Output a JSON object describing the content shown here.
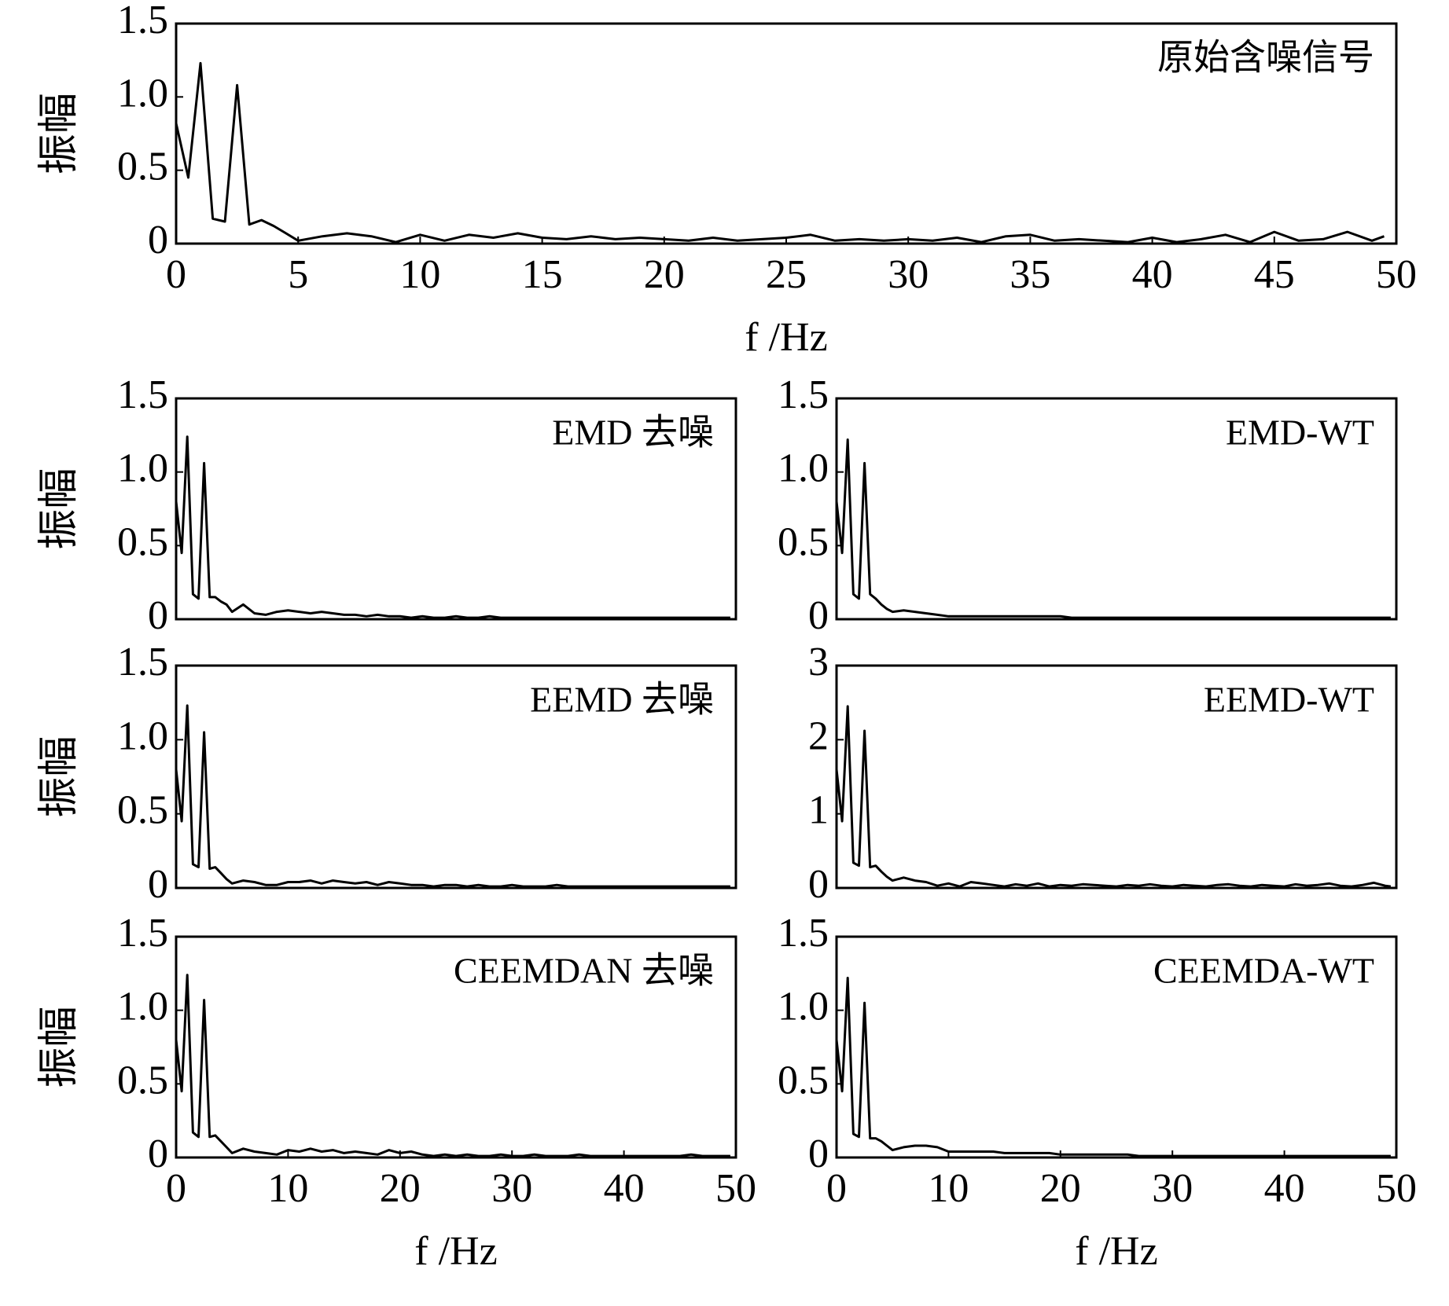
{
  "chart_data": [
    {
      "type": "line",
      "annotation": "原始含噪信号",
      "ylabel": "振幅",
      "xlabel": "f /Hz",
      "color": "#000000",
      "x": [
        0,
        0.5,
        1,
        1.5,
        2,
        2.5,
        3,
        3.5,
        4,
        4.5,
        5,
        6,
        7,
        8,
        9,
        10,
        11,
        12,
        13,
        14,
        15,
        16,
        17,
        18,
        19,
        20,
        21,
        22,
        23,
        24,
        25,
        26,
        27,
        28,
        29,
        30,
        31,
        32,
        33,
        34,
        35,
        36,
        37,
        38,
        39,
        40,
        41,
        42,
        43,
        44,
        45,
        46,
        47,
        48,
        49,
        49.5
      ],
      "values": [
        0.82,
        0.45,
        1.23,
        0.17,
        0.15,
        1.08,
        0.13,
        0.16,
        0.12,
        0.07,
        0.02,
        0.05,
        0.07,
        0.05,
        0.01,
        0.06,
        0.02,
        0.06,
        0.04,
        0.07,
        0.04,
        0.03,
        0.05,
        0.03,
        0.04,
        0.03,
        0.02,
        0.04,
        0.02,
        0.03,
        0.04,
        0.06,
        0.02,
        0.03,
        0.02,
        0.03,
        0.02,
        0.04,
        0.01,
        0.05,
        0.06,
        0.02,
        0.03,
        0.02,
        0.01,
        0.04,
        0.01,
        0.03,
        0.06,
        0.01,
        0.08,
        0.02,
        0.03,
        0.08,
        0.02,
        0.05
      ],
      "xlim": [
        0,
        50
      ],
      "ylim": [
        0,
        1.5
      ],
      "xticks": [
        0,
        5,
        10,
        15,
        20,
        25,
        30,
        35,
        40,
        45,
        50
      ],
      "yticks": [
        0,
        0.5,
        {
          "value": 1,
          "label": "1.0"
        },
        1.5
      ]
    },
    {
      "type": "line",
      "annotation": "EMD 去噪",
      "ylabel": "振幅",
      "color": "#000000",
      "x": [
        0,
        0.5,
        1,
        1.5,
        2,
        2.5,
        3,
        3.5,
        4,
        4.5,
        5,
        6,
        7,
        8,
        9,
        10,
        11,
        12,
        13,
        14,
        15,
        16,
        17,
        18,
        19,
        20,
        21,
        22,
        23,
        24,
        25,
        26,
        27,
        28,
        29,
        30,
        31,
        32,
        33,
        34,
        35,
        36,
        37,
        38,
        39,
        40,
        41,
        42,
        43,
        44,
        45,
        46,
        47,
        48,
        49,
        49.5
      ],
      "values": [
        0.8,
        0.45,
        1.24,
        0.17,
        0.14,
        1.06,
        0.15,
        0.15,
        0.12,
        0.1,
        0.05,
        0.1,
        0.04,
        0.03,
        0.05,
        0.06,
        0.05,
        0.04,
        0.05,
        0.04,
        0.03,
        0.03,
        0.02,
        0.03,
        0.02,
        0.02,
        0.01,
        0.02,
        0.01,
        0.01,
        0.02,
        0.01,
        0.01,
        0.02,
        0.01,
        0.01,
        0.01,
        0.01,
        0.01,
        0.01,
        0.01,
        0.01,
        0.01,
        0.01,
        0.01,
        0.01,
        0.01,
        0.01,
        0.01,
        0.01,
        0.01,
        0.01,
        0.01,
        0.01,
        0.01,
        0.01
      ],
      "xlim": [
        0,
        50
      ],
      "ylim": [
        0,
        1.5
      ],
      "yticks": [
        0,
        0.5,
        {
          "value": 1,
          "label": "1.0"
        },
        1.5
      ]
    },
    {
      "type": "line",
      "annotation": "EMD-WT",
      "color": "#000000",
      "x": [
        0,
        0.5,
        1,
        1.5,
        2,
        2.5,
        3,
        3.5,
        4,
        4.5,
        5,
        6,
        7,
        8,
        9,
        10,
        11,
        12,
        13,
        14,
        15,
        16,
        17,
        18,
        19,
        20,
        21,
        22,
        23,
        24,
        25,
        26,
        27,
        28,
        29,
        30,
        31,
        32,
        33,
        34,
        35,
        36,
        37,
        38,
        39,
        40,
        41,
        42,
        43,
        44,
        45,
        46,
        47,
        48,
        49,
        49.5
      ],
      "values": [
        0.8,
        0.45,
        1.22,
        0.17,
        0.14,
        1.06,
        0.17,
        0.14,
        0.1,
        0.07,
        0.05,
        0.06,
        0.05,
        0.04,
        0.03,
        0.02,
        0.02,
        0.02,
        0.02,
        0.02,
        0.02,
        0.02,
        0.02,
        0.02,
        0.02,
        0.02,
        0.01,
        0.01,
        0.01,
        0.01,
        0.01,
        0.01,
        0.01,
        0.01,
        0.01,
        0.01,
        0.01,
        0.01,
        0.01,
        0.01,
        0.01,
        0.01,
        0.01,
        0.01,
        0.01,
        0.01,
        0.01,
        0.01,
        0.01,
        0.01,
        0.01,
        0.01,
        0.01,
        0.01,
        0.01,
        0.01
      ],
      "xlim": [
        0,
        50
      ],
      "ylim": [
        0,
        1.5
      ],
      "yticks": [
        0,
        0.5,
        {
          "value": 1,
          "label": "1.0"
        },
        1.5
      ]
    },
    {
      "type": "line",
      "annotation": "EEMD 去噪",
      "ylabel": "振幅",
      "color": "#000000",
      "x": [
        0,
        0.5,
        1,
        1.5,
        2,
        2.5,
        3,
        3.5,
        4,
        4.5,
        5,
        6,
        7,
        8,
        9,
        10,
        11,
        12,
        13,
        14,
        15,
        16,
        17,
        18,
        19,
        20,
        21,
        22,
        23,
        24,
        25,
        26,
        27,
        28,
        29,
        30,
        31,
        32,
        33,
        34,
        35,
        36,
        37,
        38,
        39,
        40,
        41,
        42,
        43,
        44,
        45,
        46,
        47,
        48,
        49,
        49.5
      ],
      "values": [
        0.8,
        0.45,
        1.23,
        0.16,
        0.14,
        1.05,
        0.13,
        0.14,
        0.1,
        0.06,
        0.03,
        0.05,
        0.04,
        0.02,
        0.02,
        0.04,
        0.04,
        0.05,
        0.03,
        0.05,
        0.04,
        0.03,
        0.04,
        0.02,
        0.04,
        0.03,
        0.02,
        0.02,
        0.01,
        0.02,
        0.02,
        0.01,
        0.02,
        0.01,
        0.01,
        0.02,
        0.01,
        0.01,
        0.01,
        0.02,
        0.01,
        0.01,
        0.01,
        0.01,
        0.01,
        0.01,
        0.01,
        0.01,
        0.01,
        0.01,
        0.01,
        0.01,
        0.01,
        0.01,
        0.01,
        0.01
      ],
      "xlim": [
        0,
        50
      ],
      "ylim": [
        0,
        1.5
      ],
      "yticks": [
        0,
        0.5,
        {
          "value": 1,
          "label": "1.0"
        },
        1.5
      ]
    },
    {
      "type": "line",
      "annotation": "EEMD-WT",
      "color": "#000000",
      "x": [
        0,
        0.5,
        1,
        1.5,
        2,
        2.5,
        3,
        3.5,
        4,
        4.5,
        5,
        6,
        7,
        8,
        9,
        10,
        11,
        12,
        13,
        14,
        15,
        16,
        17,
        18,
        19,
        20,
        21,
        22,
        23,
        24,
        25,
        26,
        27,
        28,
        29,
        30,
        31,
        32,
        33,
        34,
        35,
        36,
        37,
        38,
        39,
        40,
        41,
        42,
        43,
        44,
        45,
        46,
        47,
        48,
        49,
        49.5
      ],
      "values": [
        1.6,
        0.9,
        2.45,
        0.34,
        0.3,
        2.12,
        0.28,
        0.3,
        0.22,
        0.15,
        0.1,
        0.14,
        0.1,
        0.08,
        0.03,
        0.06,
        0.02,
        0.08,
        0.06,
        0.04,
        0.02,
        0.05,
        0.03,
        0.06,
        0.02,
        0.04,
        0.03,
        0.05,
        0.04,
        0.03,
        0.02,
        0.04,
        0.03,
        0.05,
        0.03,
        0.02,
        0.04,
        0.03,
        0.02,
        0.04,
        0.05,
        0.03,
        0.02,
        0.04,
        0.03,
        0.02,
        0.05,
        0.03,
        0.04,
        0.06,
        0.03,
        0.02,
        0.04,
        0.07,
        0.03,
        0.02
      ],
      "xlim": [
        0,
        50
      ],
      "ylim": [
        0,
        3
      ],
      "yticks": [
        0,
        1,
        2,
        3
      ]
    },
    {
      "type": "line",
      "annotation": "CEEMDAN 去噪",
      "ylabel": "振幅",
      "xlabel": "f /Hz",
      "color": "#000000",
      "x": [
        0,
        0.5,
        1,
        1.5,
        2,
        2.5,
        3,
        3.5,
        4,
        4.5,
        5,
        6,
        7,
        8,
        9,
        10,
        11,
        12,
        13,
        14,
        15,
        16,
        17,
        18,
        19,
        20,
        21,
        22,
        23,
        24,
        25,
        26,
        27,
        28,
        29,
        30,
        31,
        32,
        33,
        34,
        35,
        36,
        37,
        38,
        39,
        40,
        41,
        42,
        43,
        44,
        45,
        46,
        47,
        48,
        49,
        49.5
      ],
      "values": [
        0.8,
        0.45,
        1.24,
        0.17,
        0.14,
        1.07,
        0.14,
        0.15,
        0.11,
        0.07,
        0.03,
        0.06,
        0.04,
        0.03,
        0.02,
        0.05,
        0.04,
        0.06,
        0.04,
        0.05,
        0.03,
        0.04,
        0.03,
        0.02,
        0.05,
        0.03,
        0.04,
        0.02,
        0.01,
        0.02,
        0.01,
        0.02,
        0.01,
        0.01,
        0.02,
        0.01,
        0.01,
        0.02,
        0.01,
        0.01,
        0.01,
        0.02,
        0.01,
        0.01,
        0.01,
        0.01,
        0.01,
        0.01,
        0.01,
        0.01,
        0.01,
        0.02,
        0.01,
        0.01,
        0.01,
        0.01
      ],
      "xlim": [
        0,
        50
      ],
      "ylim": [
        0,
        1.5
      ],
      "xticks": [
        0,
        10,
        20,
        30,
        40,
        50
      ],
      "yticks": [
        0,
        0.5,
        {
          "value": 1,
          "label": "1.0"
        },
        1.5
      ]
    },
    {
      "type": "line",
      "annotation": "CEEMDA-WT",
      "xlabel": "f /Hz",
      "color": "#000000",
      "x": [
        0,
        0.5,
        1,
        1.5,
        2,
        2.5,
        3,
        3.5,
        4,
        4.5,
        5,
        6,
        7,
        8,
        9,
        10,
        11,
        12,
        13,
        14,
        15,
        16,
        17,
        18,
        19,
        20,
        21,
        22,
        23,
        24,
        25,
        26,
        27,
        28,
        29,
        30,
        31,
        32,
        33,
        34,
        35,
        36,
        37,
        38,
        39,
        40,
        41,
        42,
        43,
        44,
        45,
        46,
        47,
        48,
        49,
        49.5
      ],
      "values": [
        0.8,
        0.45,
        1.22,
        0.16,
        0.14,
        1.05,
        0.13,
        0.13,
        0.11,
        0.08,
        0.05,
        0.07,
        0.08,
        0.08,
        0.07,
        0.04,
        0.04,
        0.04,
        0.04,
        0.04,
        0.03,
        0.03,
        0.03,
        0.03,
        0.03,
        0.02,
        0.02,
        0.02,
        0.02,
        0.02,
        0.02,
        0.02,
        0.01,
        0.01,
        0.01,
        0.01,
        0.01,
        0.01,
        0.01,
        0.01,
        0.01,
        0.01,
        0.01,
        0.01,
        0.01,
        0.01,
        0.01,
        0.01,
        0.01,
        0.01,
        0.01,
        0.01,
        0.01,
        0.01,
        0.01,
        0.01
      ],
      "xlim": [
        0,
        50
      ],
      "ylim": [
        0,
        1.5
      ],
      "xticks": [
        0,
        10,
        20,
        30,
        40,
        50
      ],
      "yticks": [
        0,
        0.5,
        {
          "value": 1,
          "label": "1.0"
        },
        1.5
      ]
    }
  ]
}
